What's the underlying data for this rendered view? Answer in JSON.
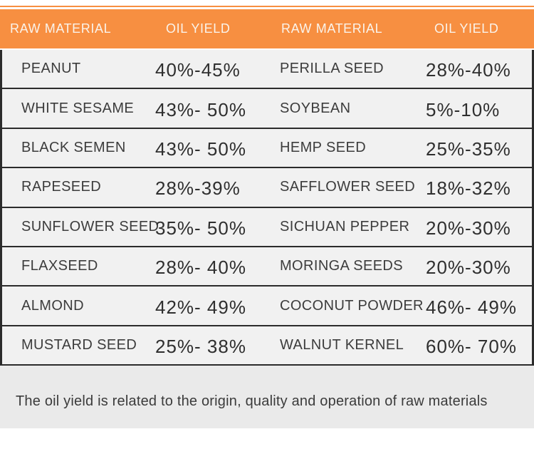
{
  "chart_data": {
    "type": "table",
    "columns": [
      "RAW MATERIAL",
      "OIL YIELD",
      "RAW MATERIAL",
      "OIL YIELD"
    ],
    "rows": [
      [
        "PEANUT",
        "40%-45%",
        "PERILLA SEED",
        "28%-40%"
      ],
      [
        "WHITE SESAME",
        "43%- 50%",
        "SOYBEAN",
        "5%-10%"
      ],
      [
        "BLACK SEMEN",
        "43%- 50%",
        "HEMP SEED",
        "25%-35%"
      ],
      [
        "RAPESEED",
        "28%-39%",
        "SAFFLOWER SEED",
        "18%-32%"
      ],
      [
        "SUNFLOWER SEED",
        "35%- 50%",
        "SICHUAN PEPPER",
        "20%-30%"
      ],
      [
        "FLAXSEED",
        "28%- 40%",
        "MORINGA SEEDS",
        "20%-30%"
      ],
      [
        "ALMOND",
        "42%- 49%",
        "COCONUT POWDER",
        "46%- 49%"
      ],
      [
        "MUSTARD SEED",
        "25%- 38%",
        "WALNUT KERNEL",
        "60%- 70%"
      ]
    ],
    "yields_numeric_pct": [
      {
        "material": "PEANUT",
        "min": 40,
        "max": 45
      },
      {
        "material": "WHITE SESAME",
        "min": 43,
        "max": 50
      },
      {
        "material": "BLACK SEMEN",
        "min": 43,
        "max": 50
      },
      {
        "material": "RAPESEED",
        "min": 28,
        "max": 39
      },
      {
        "material": "SUNFLOWER SEED",
        "min": 35,
        "max": 50
      },
      {
        "material": "FLAXSEED",
        "min": 28,
        "max": 40
      },
      {
        "material": "ALMOND",
        "min": 42,
        "max": 49
      },
      {
        "material": "MUSTARD SEED",
        "min": 25,
        "max": 38
      },
      {
        "material": "PERILLA SEED",
        "min": 28,
        "max": 40
      },
      {
        "material": "SOYBEAN",
        "min": 5,
        "max": 10
      },
      {
        "material": "HEMP SEED",
        "min": 25,
        "max": 35
      },
      {
        "material": "SAFFLOWER SEED",
        "min": 18,
        "max": 32
      },
      {
        "material": "SICHUAN PEPPER",
        "min": 20,
        "max": 30
      },
      {
        "material": "MORINGA SEEDS",
        "min": 20,
        "max": 30
      },
      {
        "material": "COCONUT POWDER",
        "min": 46,
        "max": 49
      },
      {
        "material": "WALNUT KERNEL",
        "min": 60,
        "max": 70
      }
    ],
    "note": "The oil yield is related to the origin, quality and operation of raw materials"
  },
  "colors": {
    "accent_orange": "#F78F41",
    "header_text": "#FAF3EA",
    "row_background": "#F1F1F1",
    "footer_background": "#EAEAEA",
    "border_dark": "#2B2B2B",
    "body_text": "#3C3C3C"
  }
}
